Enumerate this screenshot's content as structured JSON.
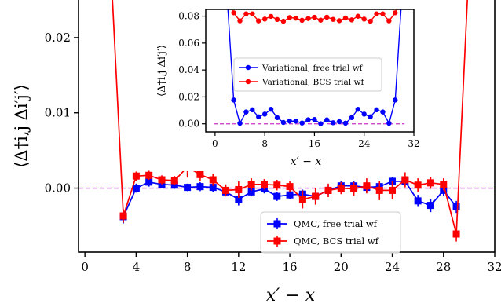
{
  "chart_data": [
    {
      "type": "line",
      "xlabel": "x′ − x",
      "ylabel": "⟨Δ†i,j Δi′j′⟩",
      "xlim": [
        -0.5,
        32
      ],
      "ylim": [
        -0.0085,
        0.025
      ],
      "xticks": [
        "0",
        "4",
        "8",
        "12",
        "16",
        "20",
        "24",
        "28",
        "32"
      ],
      "yticks": [
        "0.00",
        "0.01",
        "0.02"
      ],
      "reference_line": {
        "y": 0,
        "style": "dashed",
        "color": "#cc33cc"
      },
      "legend": {
        "placement": "lower-right"
      },
      "series": [
        {
          "name": "QMC, free trial wf",
          "color": "#0000ff",
          "marker": "square",
          "x": [
            3,
            4,
            5,
            6,
            7,
            8,
            9,
            10,
            11,
            12,
            13,
            14,
            15,
            16,
            17,
            18,
            19,
            20,
            21,
            22,
            23,
            24,
            25,
            26,
            27,
            28,
            29
          ],
          "y": [
            -0.0038,
            0.0,
            0.0008,
            0.0005,
            0.0004,
            0.0001,
            0.0002,
            0.0001,
            -0.0005,
            -0.0015,
            -0.0005,
            -0.0001,
            -0.0011,
            -0.0009,
            -0.0008,
            -0.0011,
            -0.0003,
            0.0003,
            0.0003,
            0.0001,
            0.0002,
            0.0009,
            0.0009,
            -0.0017,
            -0.0023,
            -0.0003,
            -0.0025
          ],
          "yerr": [
            0.0009,
            0.0006,
            0.0006,
            0.0005,
            0.0005,
            0.0005,
            0.0006,
            0.0006,
            0.0006,
            0.0008,
            0.0006,
            0.0006,
            0.0006,
            0.0006,
            0.0006,
            0.0006,
            0.0006,
            0.0006,
            0.0006,
            0.0007,
            0.0006,
            0.0006,
            0.0006,
            0.0008,
            0.0009,
            0.0007,
            0.0008
          ]
        },
        {
          "name": "QMC, BCS trial wf",
          "color": "#ff0000",
          "marker": "square",
          "x": [
            2,
            3,
            4,
            5,
            6,
            7,
            8,
            9,
            10,
            11,
            12,
            13,
            14,
            15,
            16,
            17,
            18,
            19,
            20,
            21,
            22,
            23,
            24,
            25,
            26,
            27,
            28,
            29,
            30
          ],
          "y": [
            0.03,
            -0.0037,
            0.0016,
            0.0017,
            0.0011,
            0.001,
            0.0028,
            0.0018,
            0.0011,
            -0.0003,
            -0.0002,
            0.0005,
            0.0005,
            0.0004,
            0.0002,
            -0.0015,
            -0.0011,
            -0.0003,
            0.0,
            -0.0001,
            0.0003,
            -0.0003,
            -0.0003,
            0.0011,
            0.0004,
            0.0007,
            0.0005,
            -0.0061,
            0.03
          ],
          "yerr": [
            0.0,
            0.0009,
            0.0006,
            0.0006,
            0.0006,
            0.0006,
            0.0014,
            0.0009,
            0.0008,
            0.0008,
            0.0011,
            0.0008,
            0.0007,
            0.0007,
            0.0007,
            0.0012,
            0.0011,
            0.0009,
            0.0008,
            0.0009,
            0.001,
            0.0013,
            0.0012,
            0.001,
            0.0009,
            0.0008,
            0.0008,
            0.001,
            0.0
          ]
        }
      ]
    },
    {
      "type": "line",
      "inset": true,
      "xlabel": "x′ − x",
      "ylabel": "⟨Δ†i,j Δi′j′⟩",
      "xlim": [
        -1.5,
        32
      ],
      "ylim": [
        -0.006,
        0.085
      ],
      "xticks": [
        "0",
        "8",
        "16",
        "24",
        "32"
      ],
      "yticks": [
        "0.00",
        "0.02",
        "0.04",
        "0.06",
        "0.08"
      ],
      "reference_line": {
        "y": 0,
        "style": "dashed",
        "color": "#cc33cc"
      },
      "legend": {
        "placement": "center"
      },
      "series": [
        {
          "name": "Variational, free trial wf",
          "color": "#0000ff",
          "marker": "circle",
          "x": [
            2,
            3,
            4,
            5,
            6,
            7,
            8,
            9,
            10,
            11,
            12,
            13,
            14,
            15,
            16,
            17,
            18,
            19,
            20,
            21,
            22,
            23,
            24,
            25,
            26,
            27,
            28,
            29,
            30
          ],
          "y": [
            0.09,
            0.0177,
            0.0004,
            0.0088,
            0.0104,
            0.0052,
            0.0072,
            0.0108,
            0.0046,
            0.001,
            0.002,
            0.002,
            0.0006,
            0.003,
            0.0032,
            0.0001,
            0.0029,
            0.0008,
            0.0016,
            0.0005,
            0.0046,
            0.0108,
            0.0072,
            0.0052,
            0.0104,
            0.0088,
            0.0004,
            0.0177,
            0.09
          ]
        },
        {
          "name": "Variational, BCS trial wf",
          "color": "#ff0000",
          "marker": "circle",
          "x": [
            2,
            3,
            4,
            5,
            6,
            7,
            8,
            9,
            10,
            11,
            12,
            13,
            14,
            15,
            16,
            17,
            18,
            19,
            20,
            21,
            22,
            23,
            24,
            25,
            26,
            27,
            28,
            29,
            30
          ],
          "y": [
            0.09,
            0.0825,
            0.0765,
            0.0817,
            0.0817,
            0.0765,
            0.0778,
            0.0798,
            0.0775,
            0.0762,
            0.0789,
            0.0785,
            0.0769,
            0.0782,
            0.0791,
            0.077,
            0.0792,
            0.0776,
            0.0766,
            0.0786,
            0.0772,
            0.0799,
            0.0778,
            0.0762,
            0.0817,
            0.0817,
            0.0765,
            0.0825,
            0.09
          ]
        }
      ]
    }
  ]
}
